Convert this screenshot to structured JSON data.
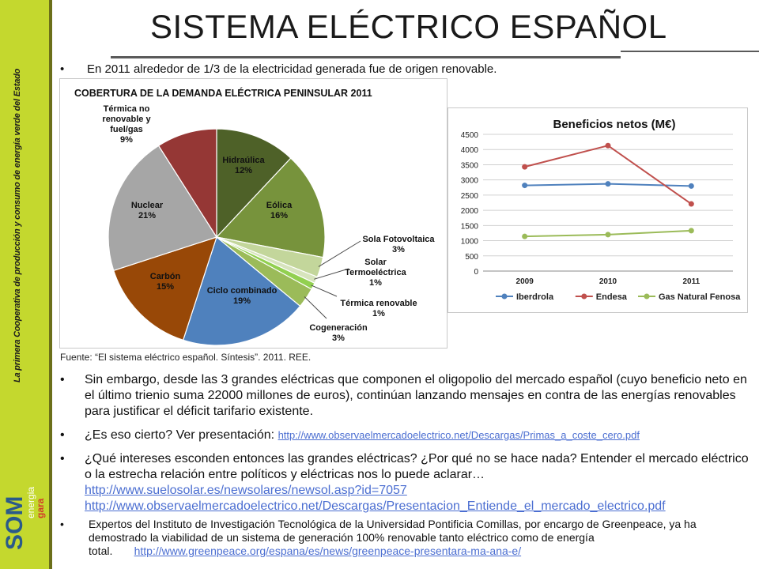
{
  "sidebar": {
    "vertical_text": "La primera Cooperativa de producción y consumo de energía verde del Estado",
    "logo_main": "SOM",
    "logo_sub1": "energia",
    "logo_sub2": "gara"
  },
  "title": "SISTEMA ELÉCTRICO ESPAÑOL",
  "bullet1": "En 2011 alrededor de 1/3 de la electricidad generada fue de origen renovable.",
  "pie": {
    "title": "COBERTURA DE LA DEMANDA ELÉCTRICA PENINSULAR 2011",
    "labels": {
      "hidraulica": [
        "Hidraúlica",
        "12%"
      ],
      "eolica": [
        "Eólica",
        "16%"
      ],
      "solar_fv": [
        "Sola Fotovoltaica",
        "3%"
      ],
      "solar_termo": [
        "Solar",
        "Termoeléctrica",
        "1%"
      ],
      "termica_ren": [
        "Térmica renovable",
        "1%"
      ],
      "cogeneracion": [
        "Cogeneración",
        "3%"
      ],
      "ciclo": [
        "Ciclo combinado",
        "19%"
      ],
      "carbon": [
        "Carbón",
        "15%"
      ],
      "nuclear": [
        "Nuclear",
        "21%"
      ],
      "termica_nr": [
        "Térmica no",
        "renovable y",
        "fuel/gas",
        "9%"
      ]
    }
  },
  "source": "Fuente: “El sistema eléctrico español. Síntesis”. 2011. REE.",
  "paragraphs": {
    "p1": "Sin embargo, desde las 3 grandes eléctricas que componen el oligopolio del mercado español (cuyo beneficio neto en el último trienio suma 22000 millones de euros), continúan lanzando mensajes en contra de las energías renovables para justificar el déficit tarifario existente.",
    "p2_text": "¿Es eso cierto? Ver presentación: ",
    "p2_link": "http://www.observaelmercadoelectrico.net/Descargas/Primas_a_coste_cero.pdf",
    "p3_text": "¿Qué intereses esconden entonces las grandes eléctricas? ¿Por qué no se hace nada? Entender el mercado eléctrico o la estrecha relación entre políticos y eléctricas nos lo puede aclarar…",
    "p3_link1": "http://www.suelosolar.es/newsolares/newsol.asp?id=7057",
    "p3_link2": "http://www.observaelmercadoelectrico.net/Descargas/Presentacion_Entiende_el_mercado_electrico.pdf",
    "p4_text": "Expertos del Instituto de Investigación Tecnológica de la Universidad Pontificia Comillas, por encargo de Greenpeace, ya ha demostrado la viabilidad de un sistema de generación 100% renovable tanto eléctrico como de energía total.",
    "p4_link": "http://www.greenpeace.org/espana/es/news/greenpeace-presentara-ma-ana-e/"
  },
  "chart_data": [
    {
      "type": "pie",
      "title": "COBERTURA DE LA DEMANDA ELÉCTRICA PENINSULAR 2011",
      "categories": [
        "Hidraúlica",
        "Eólica",
        "Sola Fotovoltaica",
        "Solar Termoeléctrica",
        "Térmica renovable",
        "Cogeneración",
        "Ciclo combinado",
        "Carbón",
        "Nuclear",
        "Térmica no renovable y fuel/gas"
      ],
      "values": [
        12,
        16,
        3,
        1,
        1,
        3,
        19,
        15,
        21,
        9
      ],
      "colors": [
        "#4e6128",
        "#77933c",
        "#c3d69b",
        "#d7e4bd",
        "#92d050",
        "#9bbb59",
        "#4f81bd",
        "#984807",
        "#a6a6a6",
        "#953735"
      ]
    },
    {
      "type": "line",
      "title": "Beneficios netos (M€)",
      "categories": [
        "2009",
        "2010",
        "2011"
      ],
      "series": [
        {
          "name": "Iberdrola",
          "values": [
            2820,
            2870,
            2800
          ],
          "color": "#4f81bd"
        },
        {
          "name": "Endesa",
          "values": [
            3430,
            4130,
            2210
          ],
          "color": "#c0504d"
        },
        {
          "name": "Gas Natural Fenosa",
          "values": [
            1140,
            1200,
            1330
          ],
          "color": "#9bbb59"
        }
      ],
      "ylim": [
        0,
        4500
      ],
      "yticks": [
        "0",
        "500",
        "1000",
        "1500",
        "2000",
        "2500",
        "3000",
        "3500",
        "4000",
        "4500"
      ],
      "grid": true,
      "legend": "bottom"
    }
  ]
}
